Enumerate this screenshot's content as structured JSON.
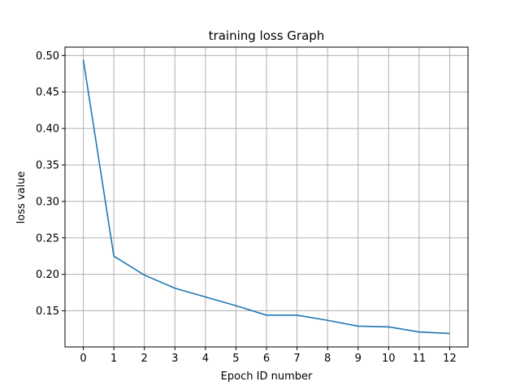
{
  "chart_data": {
    "type": "line",
    "title": "training loss Graph",
    "xlabel": "Epoch ID number",
    "ylabel": "loss value",
    "x": [
      0,
      1,
      2,
      3,
      4,
      5,
      6,
      7,
      8,
      9,
      10,
      11,
      12
    ],
    "xticks": [
      "0",
      "1",
      "2",
      "3",
      "4",
      "5",
      "6",
      "7",
      "8",
      "9",
      "10",
      "11",
      "12"
    ],
    "yticks": [
      "0.15",
      "0.20",
      "0.25",
      "0.30",
      "0.35",
      "0.40",
      "0.45",
      "0.50"
    ],
    "xlim": [
      -0.6,
      12.6
    ],
    "ylim": [
      0.1005,
      0.5115
    ],
    "grid": true,
    "series": [
      {
        "values": [
          0.494,
          0.225,
          0.199,
          0.181,
          0.169,
          0.157,
          0.144,
          0.144,
          0.137,
          0.129,
          0.128,
          0.121,
          0.119
        ],
        "color": "#1f77b4"
      }
    ]
  }
}
